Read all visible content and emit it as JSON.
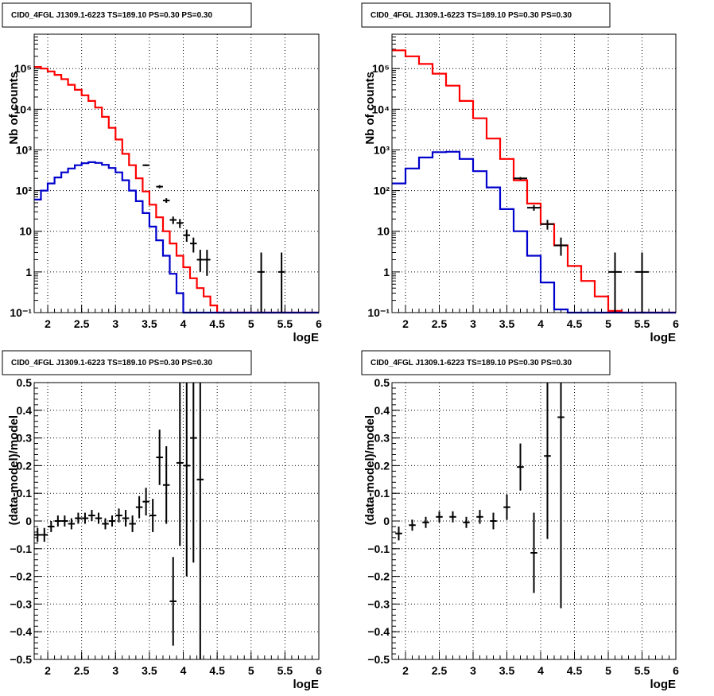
{
  "panels": [
    {
      "id": "tl",
      "title": "CID0_4FGL J1309.1-6223 TS=189.10 PS=0.30 PS=0.30",
      "xlabel": "logE",
      "ylabel": "Nb of counts",
      "scale": "log",
      "xlim": [
        1.8,
        6.0
      ],
      "ylim": [
        0.1,
        700000
      ],
      "xticks": [
        2,
        2.5,
        3,
        3.5,
        4,
        4.5,
        5,
        5.5,
        6
      ],
      "xtick_labels": [
        "2",
        "2.5",
        "3",
        "3.5",
        "4",
        "4.5",
        "5",
        "5.5",
        "6"
      ],
      "yticks": [
        0.1,
        1,
        10,
        100,
        1000,
        10000,
        100000
      ],
      "ytick_labels": [
        "10⁻¹",
        "1",
        "10",
        "10²",
        "10³",
        "10⁴",
        "10⁵"
      ]
    },
    {
      "id": "tr",
      "title": "CID0_4FGL J1309.1-6223 TS=189.10 PS=0.30 PS=0.30",
      "xlabel": "logE",
      "ylabel": "Nb of counts",
      "scale": "log",
      "xlim": [
        1.8,
        6.0
      ],
      "ylim": [
        0.1,
        700000
      ],
      "xticks": [
        2,
        2.5,
        3,
        3.5,
        4,
        4.5,
        5,
        5.5,
        6
      ],
      "xtick_labels": [
        "2",
        "2.5",
        "3",
        "3.5",
        "4",
        "4.5",
        "5",
        "5.5",
        "6"
      ],
      "yticks": [
        0.1,
        1,
        10,
        100,
        1000,
        10000,
        100000
      ],
      "ytick_labels": [
        "10⁻¹",
        "1",
        "10",
        "10²",
        "10³",
        "10⁴",
        "10⁵"
      ]
    },
    {
      "id": "bl",
      "title": "CID0_4FGL J1309.1-6223 TS=189.10 PS=0.30 PS=0.30",
      "xlabel": "logE",
      "ylabel": "(data-model)/model",
      "scale": "linear",
      "xlim": [
        1.8,
        6.0
      ],
      "ylim": [
        -0.5,
        0.5
      ],
      "xticks": [
        2,
        2.5,
        3,
        3.5,
        4,
        4.5,
        5,
        5.5,
        6
      ],
      "xtick_labels": [
        "2",
        "2.5",
        "3",
        "3.5",
        "4",
        "4.5",
        "5",
        "5.5",
        "6"
      ],
      "yticks": [
        -0.5,
        -0.4,
        -0.3,
        -0.2,
        -0.1,
        0,
        0.1,
        0.2,
        0.3,
        0.4,
        0.5
      ],
      "ytick_labels": [
        "−0.5",
        "−0.4",
        "−0.3",
        "−0.2",
        "−0.1",
        "0",
        "0.1",
        "0.2",
        "0.3",
        "0.4",
        "0.5"
      ]
    },
    {
      "id": "br",
      "title": "CID0_4FGL J1309.1-6223 TS=189.10 PS=0.30 PS=0.30",
      "xlabel": "logE",
      "ylabel": "(data-model)/model",
      "scale": "linear",
      "xlim": [
        1.8,
        6.0
      ],
      "ylim": [
        -0.5,
        0.5
      ],
      "xticks": [
        2,
        2.5,
        3,
        3.5,
        4,
        4.5,
        5,
        5.5,
        6
      ],
      "xtick_labels": [
        "2",
        "2.5",
        "3",
        "3.5",
        "4",
        "4.5",
        "5",
        "5.5",
        "6"
      ],
      "yticks": [
        -0.5,
        -0.4,
        -0.3,
        -0.2,
        -0.1,
        0,
        0.1,
        0.2,
        0.3,
        0.4,
        0.5
      ],
      "ytick_labels": [
        "−0.5",
        "−0.4",
        "−0.3",
        "−0.2",
        "−0.1",
        "0",
        "0.1",
        "0.2",
        "0.3",
        "0.4",
        "0.5"
      ]
    }
  ],
  "colors": {
    "total_model": "#ff0000",
    "source_model": "#0000cc",
    "data": "#000000"
  },
  "chart_data": [
    {
      "panel": "tl",
      "type": "line",
      "xlabel": "logE",
      "ylabel": "Nb of counts",
      "log_y": true,
      "grid": true,
      "bin_edges": [
        1.8,
        1.9,
        2.0,
        2.1,
        2.2,
        2.3,
        2.4,
        2.5,
        2.6,
        2.7,
        2.8,
        2.9,
        3.0,
        3.1,
        3.2,
        3.3,
        3.4,
        3.5,
        3.6,
        3.7,
        3.8,
        3.9,
        4.0,
        4.1,
        4.2,
        4.3,
        4.4,
        4.5,
        4.6,
        4.7,
        4.8,
        4.9,
        5.0,
        5.1,
        5.2,
        5.3,
        5.4,
        5.5,
        5.6,
        5.7,
        5.8,
        5.9,
        6.0
      ],
      "series": [
        {
          "color": "#ff0000",
          "values": [
            110000,
            100000,
            85000,
            70000,
            55000,
            40000,
            30000,
            22000,
            16000,
            11000,
            6500,
            3500,
            1800,
            800,
            420,
            200,
            95,
            45,
            22,
            10,
            5,
            2.5,
            1.3,
            0.7,
            0.4,
            0.25,
            0.15,
            0.09,
            0.06,
            0.04,
            0.03,
            0.02,
            0.015,
            0.01,
            0.008,
            0.005,
            0.003,
            0.002,
            0.001,
            0.001,
            0.001,
            0.001
          ]
        },
        {
          "color": "#0000cc",
          "values": [
            60,
            100,
            150,
            210,
            280,
            350,
            420,
            470,
            500,
            480,
            430,
            360,
            280,
            180,
            100,
            55,
            28,
            13,
            6,
            2.5,
            0.9,
            0.3,
            0.09,
            0.05,
            0.05,
            0.05,
            0.05,
            0.05,
            0.05,
            0.05,
            0.05,
            0.05,
            0.05,
            0.05,
            0.05,
            0.05,
            0.05,
            0.05,
            0.05,
            0.05,
            0.05,
            0.05
          ]
        }
      ],
      "points": [
        {
          "x": 3.45,
          "y": 420,
          "ylo": 400,
          "yhi": 440
        },
        {
          "x": 3.65,
          "y": 125,
          "ylo": 114,
          "yhi": 136
        },
        {
          "x": 3.75,
          "y": 57,
          "ylo": 50,
          "yhi": 65
        },
        {
          "x": 3.85,
          "y": 19,
          "ylo": 15,
          "yhi": 23
        },
        {
          "x": 3.95,
          "y": 16,
          "ylo": 12,
          "yhi": 20
        },
        {
          "x": 4.05,
          "y": 8,
          "ylo": 5.5,
          "yhi": 11
        },
        {
          "x": 4.15,
          "y": 5,
          "ylo": 3,
          "yhi": 7
        },
        {
          "x": 4.25,
          "y": 2,
          "ylo": 1,
          "yhi": 3.5
        },
        {
          "x": 4.35,
          "y": 2,
          "ylo": 0.8,
          "yhi": 3.5
        },
        {
          "x": 5.15,
          "y": 1,
          "ylo": 0.1,
          "yhi": 3
        },
        {
          "x": 5.45,
          "y": 1,
          "ylo": 0.1,
          "yhi": 3
        }
      ]
    },
    {
      "panel": "tr",
      "type": "line",
      "xlabel": "logE",
      "ylabel": "Nb of counts",
      "log_y": true,
      "grid": true,
      "bin_edges": [
        1.8,
        2.0,
        2.2,
        2.4,
        2.6,
        2.8,
        3.0,
        3.2,
        3.4,
        3.6,
        3.8,
        4.0,
        4.2,
        4.4,
        4.6,
        4.8,
        5.0,
        5.2,
        5.4,
        5.6,
        5.8,
        6.0
      ],
      "series": [
        {
          "color": "#ff0000",
          "values": [
            280000,
            200000,
            130000,
            75000,
            38000,
            16000,
            6000,
            1900,
            600,
            180,
            48,
            15,
            4.5,
            1.4,
            0.6,
            0.25,
            0.11,
            0.05,
            0.02,
            0.01,
            0.01
          ]
        },
        {
          "color": "#0000cc",
          "values": [
            150,
            350,
            650,
            880,
            900,
            600,
            300,
            120,
            35,
            10,
            2.5,
            0.55,
            0.12,
            0.05,
            0.05,
            0.05,
            0.05,
            0.05,
            0.05,
            0.05,
            0.05
          ]
        }
      ],
      "points": [
        {
          "x": 3.7,
          "y": 200,
          "ylo": 185,
          "yhi": 215
        },
        {
          "x": 3.9,
          "y": 38,
          "ylo": 32,
          "yhi": 44
        },
        {
          "x": 4.1,
          "y": 15,
          "ylo": 11,
          "yhi": 19
        },
        {
          "x": 4.3,
          "y": 4.5,
          "ylo": 2.5,
          "yhi": 7
        },
        {
          "x": 5.1,
          "y": 1,
          "ylo": 0.1,
          "yhi": 3
        },
        {
          "x": 5.5,
          "y": 1,
          "ylo": 0.1,
          "yhi": 3
        }
      ]
    },
    {
      "panel": "bl",
      "type": "scatter",
      "xlabel": "logE",
      "ylabel": "(data-model)/model",
      "grid": true,
      "points": [
        {
          "x": 1.85,
          "y": -0.05,
          "yerr": 0.025
        },
        {
          "x": 1.95,
          "y": -0.05,
          "yerr": 0.025
        },
        {
          "x": 2.05,
          "y": -0.02,
          "yerr": 0.02
        },
        {
          "x": 2.15,
          "y": 0.0,
          "yerr": 0.02
        },
        {
          "x": 2.25,
          "y": 0.0,
          "yerr": 0.02
        },
        {
          "x": 2.35,
          "y": -0.01,
          "yerr": 0.02
        },
        {
          "x": 2.45,
          "y": 0.01,
          "yerr": 0.02
        },
        {
          "x": 2.55,
          "y": 0.01,
          "yerr": 0.02
        },
        {
          "x": 2.65,
          "y": 0.02,
          "yerr": 0.02
        },
        {
          "x": 2.75,
          "y": 0.01,
          "yerr": 0.02
        },
        {
          "x": 2.85,
          "y": -0.01,
          "yerr": 0.02
        },
        {
          "x": 2.95,
          "y": 0.0,
          "yerr": 0.02
        },
        {
          "x": 3.05,
          "y": 0.02,
          "yerr": 0.025
        },
        {
          "x": 3.15,
          "y": 0.01,
          "yerr": 0.03
        },
        {
          "x": 3.25,
          "y": -0.01,
          "yerr": 0.03
        },
        {
          "x": 3.35,
          "y": 0.05,
          "yerr": 0.04
        },
        {
          "x": 3.45,
          "y": 0.07,
          "yerr": 0.05
        },
        {
          "x": 3.55,
          "y": 0.02,
          "yerr": 0.06
        },
        {
          "x": 3.65,
          "y": 0.23,
          "yerr": 0.1
        },
        {
          "x": 3.75,
          "y": 0.13,
          "yerr": 0.14
        },
        {
          "x": 3.85,
          "y": -0.29,
          "yerr": 0.16
        },
        {
          "x": 3.95,
          "y": 0.21,
          "yerr": 0.3
        },
        {
          "x": 4.05,
          "y": 0.2,
          "yerr": 0.4
        },
        {
          "x": 4.15,
          "y": 0.3,
          "yerr": 0.45
        },
        {
          "x": 4.25,
          "y": 0.15,
          "yerr": 0.7
        }
      ]
    },
    {
      "panel": "br",
      "type": "scatter",
      "xlabel": "logE",
      "ylabel": "(data-model)/model",
      "grid": true,
      "points": [
        {
          "x": 1.9,
          "y": -0.045,
          "yerr": 0.025
        },
        {
          "x": 2.1,
          "y": -0.015,
          "yerr": 0.02
        },
        {
          "x": 2.3,
          "y": -0.005,
          "yerr": 0.02
        },
        {
          "x": 2.5,
          "y": 0.015,
          "yerr": 0.02
        },
        {
          "x": 2.7,
          "y": 0.015,
          "yerr": 0.02
        },
        {
          "x": 2.9,
          "y": -0.005,
          "yerr": 0.02
        },
        {
          "x": 3.1,
          "y": 0.015,
          "yerr": 0.025
        },
        {
          "x": 3.3,
          "y": 0.0,
          "yerr": 0.03
        },
        {
          "x": 3.5,
          "y": 0.05,
          "yerr": 0.045
        },
        {
          "x": 3.7,
          "y": 0.195,
          "yerr": 0.085
        },
        {
          "x": 3.9,
          "y": -0.115,
          "yerr": 0.145
        },
        {
          "x": 4.1,
          "y": 0.235,
          "yerr": 0.3
        },
        {
          "x": 4.3,
          "y": 0.375,
          "yerr": 0.69
        }
      ]
    }
  ]
}
